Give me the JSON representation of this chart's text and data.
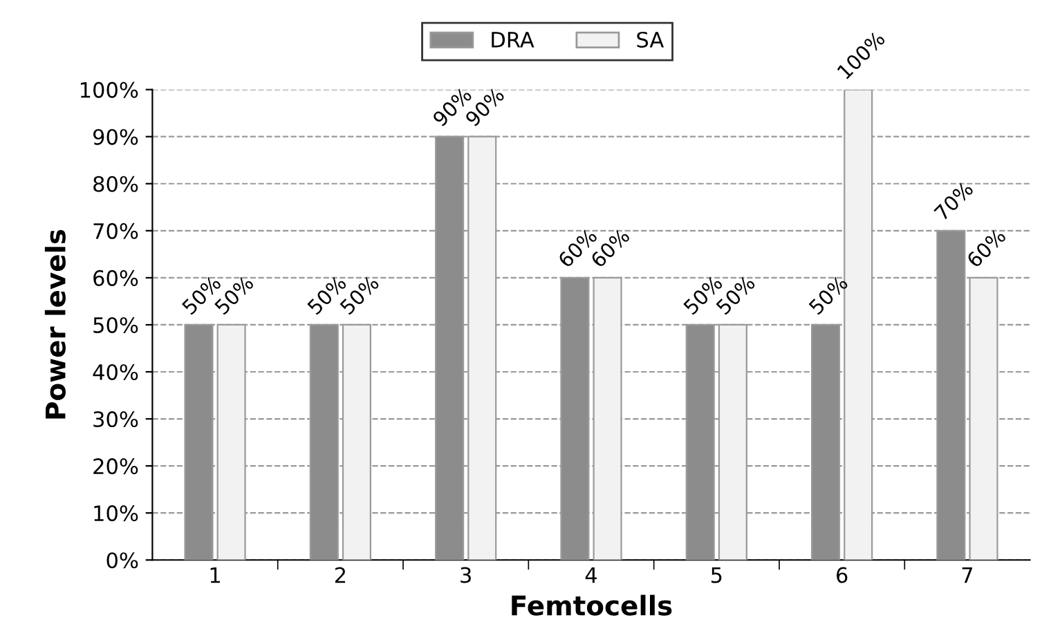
{
  "chart_data": {
    "type": "bar",
    "xlabel": "Femtocells",
    "ylabel": "Power levels",
    "categories": [
      "1",
      "2",
      "3",
      "4",
      "5",
      "6",
      "7"
    ],
    "series": [
      {
        "name": "DRA",
        "color": "#8c8c8c",
        "values": [
          50,
          50,
          90,
          60,
          50,
          50,
          70
        ],
        "value_labels": [
          "50%",
          "50%",
          "90%",
          "60%",
          "50%",
          "50%",
          "70%"
        ]
      },
      {
        "name": "SA",
        "color": "#f2f2f2",
        "values": [
          50,
          50,
          90,
          60,
          50,
          100,
          60
        ],
        "value_labels": [
          "50%",
          "50%",
          "90%",
          "60%",
          "50%",
          "100%",
          "60%"
        ]
      }
    ],
    "ylim": [
      0,
      100
    ],
    "yticks": [
      {
        "value": 0,
        "label": "0%"
      },
      {
        "value": 10,
        "label": "10%"
      },
      {
        "value": 20,
        "label": "20%"
      },
      {
        "value": 30,
        "label": "30%"
      },
      {
        "value": 40,
        "label": "40%"
      },
      {
        "value": 50,
        "label": "50%"
      },
      {
        "value": 60,
        "label": "60%"
      },
      {
        "value": 70,
        "label": "70%"
      },
      {
        "value": 80,
        "label": "80%"
      },
      {
        "value": 90,
        "label": "90%"
      },
      {
        "value": 100,
        "label": "100%"
      }
    ],
    "grid": "y",
    "legend": "top"
  }
}
